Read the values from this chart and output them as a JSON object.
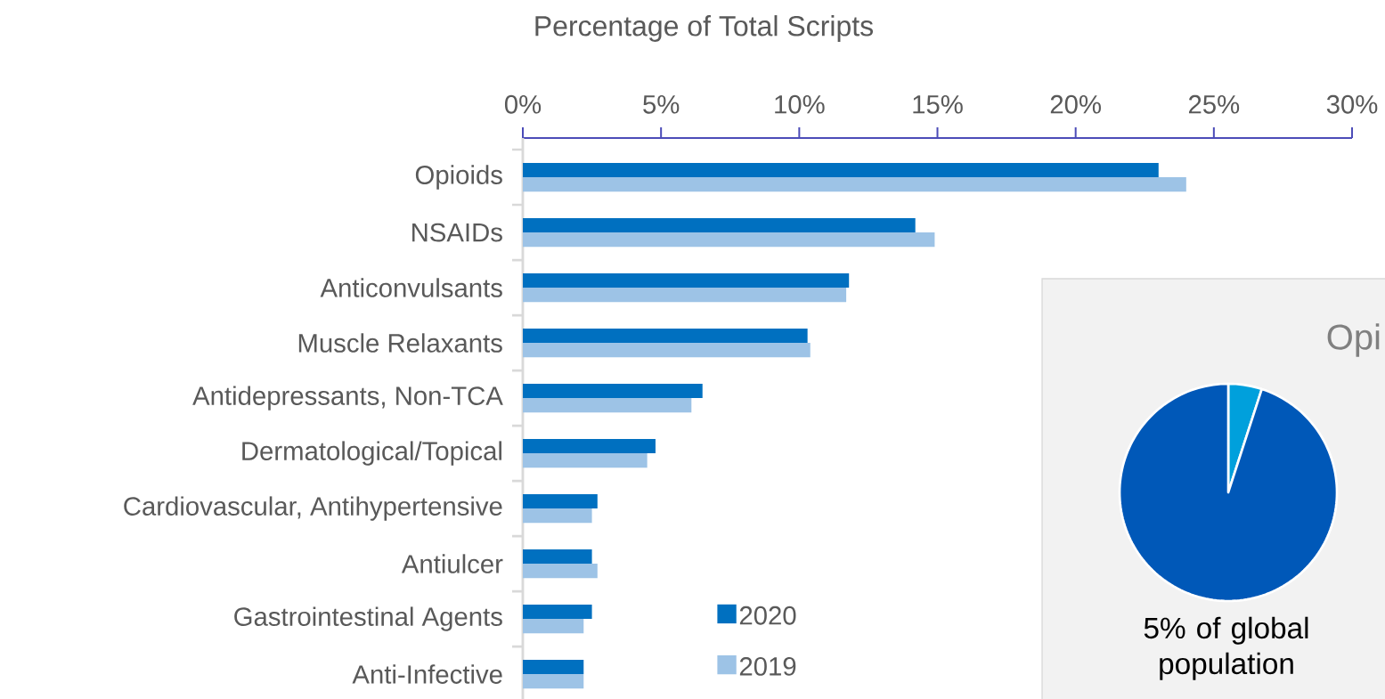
{
  "chart_data": [
    {
      "type": "bar",
      "orientation": "horizontal",
      "xlabel": "Percentage of Total Scripts",
      "categories": [
        "Opioids",
        "NSAIDs",
        "Anticonvulsants",
        "Muscle Relaxants",
        "Antidepressants, Non-TCA",
        "Dermatological/Topical",
        "Cardiovascular, Antihypertensive",
        "Antiulcer",
        "Gastrointestinal Agents",
        "Anti-Infective"
      ],
      "series": [
        {
          "name": "2020",
          "color": "#0070c0",
          "values": [
            23.0,
            14.2,
            11.8,
            10.3,
            6.5,
            4.8,
            2.7,
            2.5,
            2.5,
            2.2
          ]
        },
        {
          "name": "2019",
          "color": "#9dc3e6",
          "values": [
            24.0,
            14.9,
            11.7,
            10.4,
            6.1,
            4.5,
            2.5,
            2.7,
            2.2,
            2.2
          ]
        }
      ],
      "xlim": [
        0,
        30
      ],
      "xticks": [
        {
          "value": 0,
          "label": "0%"
        },
        {
          "value": 5,
          "label": "5%"
        },
        {
          "value": 10,
          "label": "10%"
        },
        {
          "value": 15,
          "label": "15%"
        },
        {
          "value": 20,
          "label": "20%"
        },
        {
          "value": 25,
          "label": "25%"
        },
        {
          "value": 30,
          "label": "30%"
        }
      ],
      "legend": "bottom"
    },
    {
      "type": "pie",
      "title": "Opi",
      "categories": [
        null,
        null
      ],
      "values": [
        5,
        95
      ],
      "colors": [
        "#00a0dc",
        "#0058b8"
      ],
      "annotations": [
        "5% of global population"
      ]
    }
  ]
}
